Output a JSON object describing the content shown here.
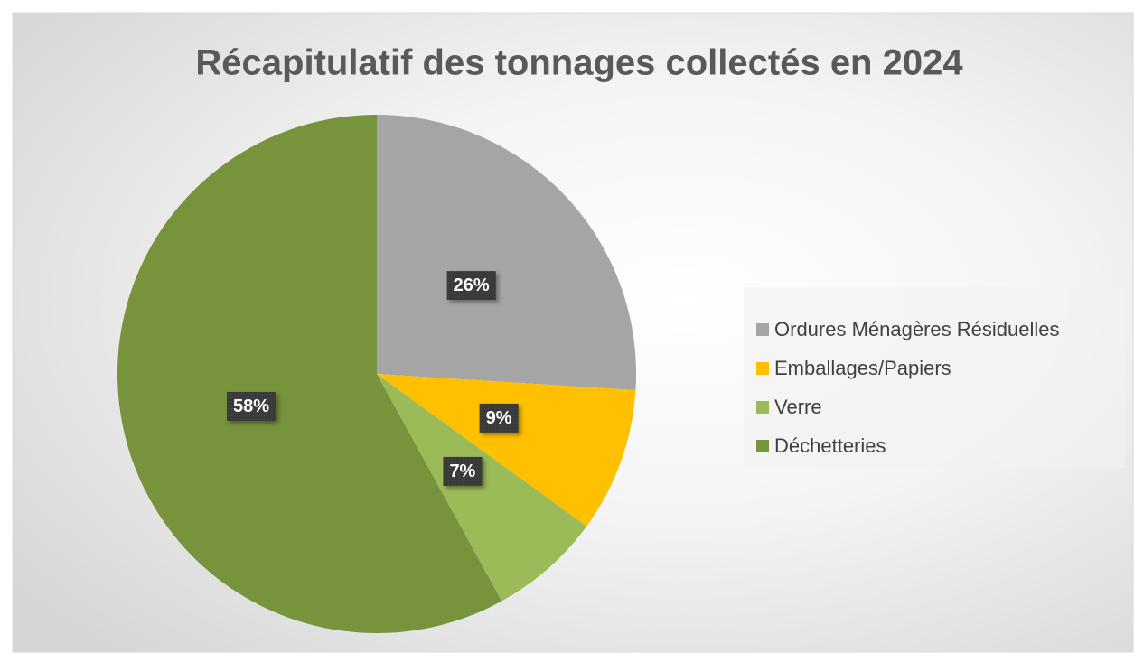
{
  "chart_data": {
    "type": "pie",
    "title": "Récapitulatif des tonnages collectés en 2024",
    "categories": [
      "Ordures Ménagères Résiduelles",
      "Emballages/Papiers",
      "Verre",
      "Déchetteries"
    ],
    "values": [
      26,
      9,
      7,
      58
    ],
    "value_labels": [
      "26%",
      "9%",
      "7%",
      "58%"
    ],
    "colors": [
      "#a5a5a5",
      "#ffc000",
      "#9bbb59",
      "#77933c"
    ],
    "legend": "right"
  }
}
